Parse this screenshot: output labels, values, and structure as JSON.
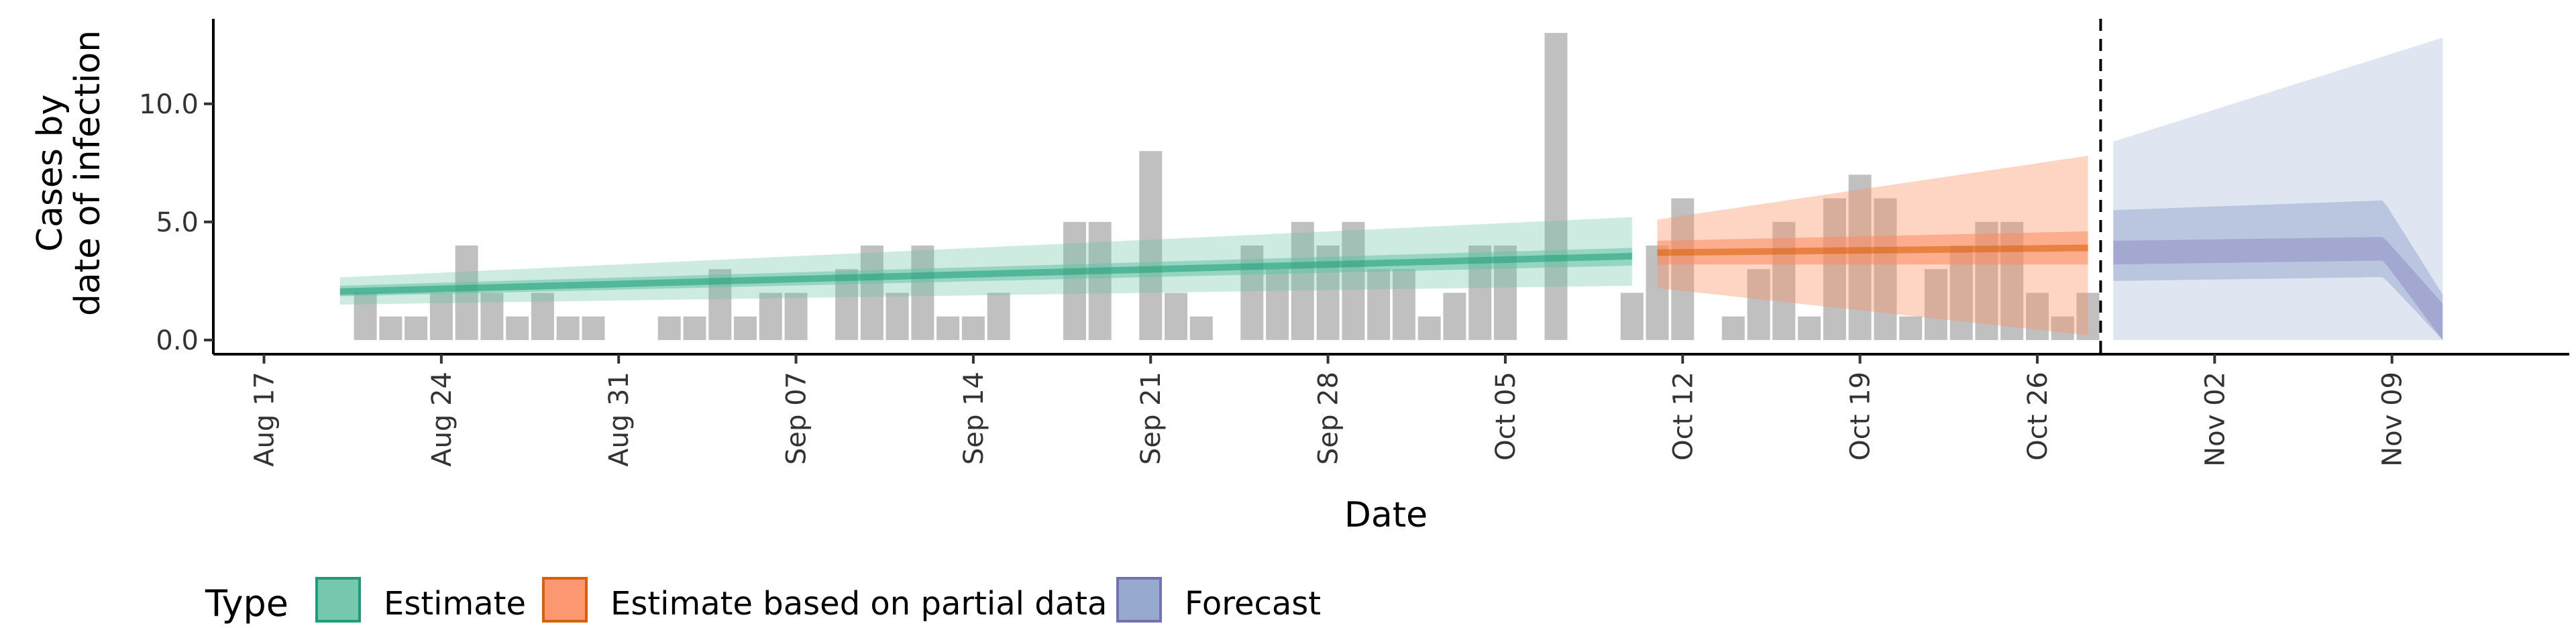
{
  "chart_data": {
    "type": "bar",
    "xlabel": "Date",
    "ylabel_lines": [
      "Cases by",
      "date of infection"
    ],
    "ylim": [
      -0.6,
      13.6
    ],
    "xlim": [
      "2020-08-15",
      "2020-11-16"
    ],
    "y_ticks": [
      0,
      5,
      10
    ],
    "y_tick_labels": [
      "0.0",
      "5.0",
      "10.0"
    ],
    "x_ticks": [
      "2020-08-17",
      "2020-08-24",
      "2020-08-31",
      "2020-09-07",
      "2020-09-14",
      "2020-09-21",
      "2020-09-28",
      "2020-10-05",
      "2020-10-12",
      "2020-10-19",
      "2020-10-26",
      "2020-11-02",
      "2020-11-09"
    ],
    "x_tick_labels": [
      "Aug 17",
      "Aug 24",
      "Aug 31",
      "Sep 07",
      "Sep 14",
      "Sep 21",
      "Sep 28",
      "Oct 05",
      "Oct 12",
      "Oct 19",
      "Oct 26",
      "Nov 02",
      "Nov 09"
    ],
    "bars": {
      "color": "#bdbdbd",
      "start_date": "2020-08-21",
      "dates": [
        "2020-08-21",
        "2020-08-22",
        "2020-08-23",
        "2020-08-24",
        "2020-08-25",
        "2020-08-26",
        "2020-08-27",
        "2020-08-28",
        "2020-08-29",
        "2020-08-30",
        "2020-08-31",
        "2020-09-01",
        "2020-09-02",
        "2020-09-03",
        "2020-09-04",
        "2020-09-05",
        "2020-09-06",
        "2020-09-07",
        "2020-09-08",
        "2020-09-09",
        "2020-09-10",
        "2020-09-11",
        "2020-09-12",
        "2020-09-13",
        "2020-09-14",
        "2020-09-15",
        "2020-09-16",
        "2020-09-17",
        "2020-09-18",
        "2020-09-19",
        "2020-09-20",
        "2020-09-21",
        "2020-09-22",
        "2020-09-23",
        "2020-09-24",
        "2020-09-25",
        "2020-09-26",
        "2020-09-27",
        "2020-09-28",
        "2020-09-29",
        "2020-09-30",
        "2020-10-01",
        "2020-10-02",
        "2020-10-03",
        "2020-10-04",
        "2020-10-05",
        "2020-10-06",
        "2020-10-07",
        "2020-10-08",
        "2020-10-09",
        "2020-10-10",
        "2020-10-11",
        "2020-10-12",
        "2020-10-13",
        "2020-10-14",
        "2020-10-15",
        "2020-10-16",
        "2020-10-17",
        "2020-10-18",
        "2020-10-19",
        "2020-10-20",
        "2020-10-21",
        "2020-10-22",
        "2020-10-23",
        "2020-10-24",
        "2020-10-25",
        "2020-10-26",
        "2020-10-27",
        "2020-10-28"
      ],
      "values": [
        2,
        1,
        1,
        2,
        4,
        2,
        1,
        2,
        1,
        1,
        0,
        0,
        1,
        1,
        3,
        1,
        2,
        2,
        0,
        3,
        4,
        2,
        4,
        1,
        1,
        2,
        0,
        0,
        5,
        5,
        0,
        8,
        2,
        1,
        0,
        4,
        3,
        5,
        4,
        5,
        3,
        3,
        1,
        2,
        4,
        4,
        0,
        13,
        0,
        0,
        2,
        4,
        6,
        0,
        1,
        3,
        5,
        1,
        6,
        7,
        6,
        1,
        3,
        4,
        5,
        5,
        2,
        1,
        2
      ]
    },
    "series": [
      {
        "name": "Estimate",
        "color": "#1b9e77",
        "fill": "#66c2a5",
        "start": "2020-08-20",
        "end": "2020-10-10",
        "median": [
          2.05,
          3.55
        ],
        "inner": [
          [
            1.85,
            2.3
          ],
          [
            3.15,
            3.9
          ]
        ],
        "outer": [
          [
            1.5,
            2.65
          ],
          [
            2.3,
            5.2
          ]
        ]
      },
      {
        "name": "Estimate based on partial data",
        "color": "#d95f02",
        "fill": "#fc8d62",
        "start": "2020-10-11",
        "end": "2020-10-28",
        "median": [
          3.7,
          3.9
        ],
        "inner": [
          [
            3.2,
            4.2
          ],
          [
            3.2,
            4.6
          ]
        ],
        "outer": [
          [
            2.2,
            5.1
          ],
          [
            0.2,
            7.8
          ]
        ]
      },
      {
        "name": "Forecast",
        "color": "#7570b3",
        "fill": "#8da0cb",
        "start": "2020-10-29",
        "end": "2020-11-11",
        "median": [
          3.7,
          3.9
        ],
        "inner": [
          [
            2.5,
            5.5
          ],
          [
            2.7,
            6.0
          ]
        ],
        "outer": [
          [
            0.0,
            8.4
          ],
          [
            0.0,
            12.8
          ]
        ]
      }
    ],
    "forecast_cutoff": "2020-10-28",
    "legend": {
      "position": "bottom",
      "title": "Type",
      "items": [
        "Estimate",
        "Estimate based on partial data",
        "Forecast"
      ]
    }
  }
}
